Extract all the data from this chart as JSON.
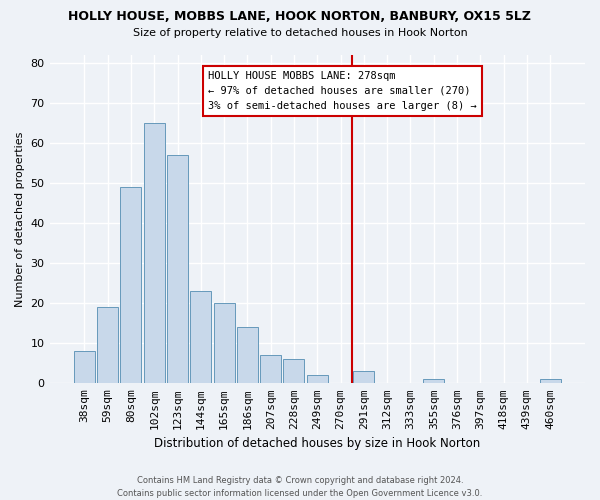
{
  "title": "HOLLY HOUSE, MOBBS LANE, HOOK NORTON, BANBURY, OX15 5LZ",
  "subtitle": "Size of property relative to detached houses in Hook Norton",
  "xlabel": "Distribution of detached houses by size in Hook Norton",
  "ylabel": "Number of detached properties",
  "bar_labels": [
    "38sqm",
    "59sqm",
    "80sqm",
    "102sqm",
    "123sqm",
    "144sqm",
    "165sqm",
    "186sqm",
    "207sqm",
    "228sqm",
    "249sqm",
    "270sqm",
    "291sqm",
    "312sqm",
    "333sqm",
    "355sqm",
    "376sqm",
    "397sqm",
    "418sqm",
    "439sqm",
    "460sqm"
  ],
  "bar_values": [
    8,
    19,
    49,
    65,
    57,
    23,
    20,
    14,
    7,
    6,
    2,
    0,
    3,
    0,
    0,
    1,
    0,
    0,
    0,
    0,
    1
  ],
  "bar_color": "#c8d8ea",
  "bar_edge_color": "#6699bb",
  "background_color": "#eef2f7",
  "grid_color": "#ffffff",
  "vline_x_index": 11.5,
  "vline_color": "#cc0000",
  "annotation_title": "HOLLY HOUSE MOBBS LANE: 278sqm",
  "annotation_line1": "← 97% of detached houses are smaller (270)",
  "annotation_line2": "3% of semi-detached houses are larger (8) →",
  "annotation_border_color": "#cc0000",
  "ylim": [
    0,
    82
  ],
  "yticks": [
    0,
    10,
    20,
    30,
    40,
    50,
    60,
    70,
    80
  ],
  "footer": "Contains HM Land Registry data © Crown copyright and database right 2024.\nContains public sector information licensed under the Open Government Licence v3.0."
}
